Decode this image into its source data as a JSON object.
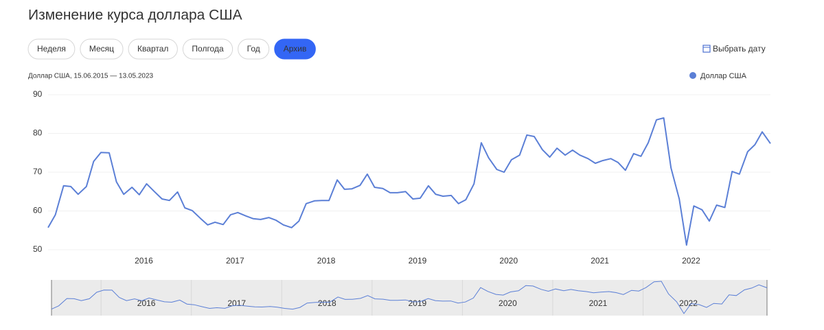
{
  "header": {
    "title": "Изменение курса доллара США"
  },
  "buttons": [
    "Неделя",
    "Месяц",
    "Квартал",
    "Полгода",
    "Год",
    "Архив"
  ],
  "active_button": 5,
  "date_picker": "Выбрать дату",
  "chart_data": {
    "type": "line",
    "subtitle": "Доллар США, 15.06.2015 — 13.05.2023",
    "x": [
      2014.95,
      2015.03,
      2015.12,
      2015.2,
      2015.28,
      2015.37,
      2015.45,
      2015.53,
      2015.62,
      2015.7,
      2015.78,
      2015.87,
      2015.95,
      2016.03,
      2016.12,
      2016.2,
      2016.28,
      2016.37,
      2016.45,
      2016.53,
      2016.62,
      2016.7,
      2016.78,
      2016.87,
      2016.95,
      2017.03,
      2017.12,
      2017.2,
      2017.28,
      2017.37,
      2017.45,
      2017.53,
      2017.62,
      2017.7,
      2017.78,
      2017.87,
      2017.95,
      2018.03,
      2018.12,
      2018.2,
      2018.28,
      2018.37,
      2018.45,
      2018.53,
      2018.62,
      2018.7,
      2018.78,
      2018.87,
      2018.95,
      2019.03,
      2019.12,
      2019.2,
      2019.28,
      2019.37,
      2019.45,
      2019.53,
      2019.62,
      2019.7,
      2019.78,
      2019.87,
      2019.95,
      2020.03,
      2020.12,
      2020.2,
      2020.28,
      2020.37,
      2020.45,
      2020.53,
      2020.62,
      2020.7,
      2020.78,
      2020.87,
      2020.95,
      2021.03,
      2021.12,
      2021.2,
      2021.28,
      2021.37,
      2021.45,
      2021.53,
      2021.62,
      2021.7,
      2021.78,
      2021.87,
      2021.95,
      2022.03,
      2022.12,
      2022.2,
      2022.28,
      2022.37,
      2022.45,
      2022.53,
      2022.62,
      2022.7,
      2022.78,
      2022.87
    ],
    "series": [
      {
        "name": "Доллар США",
        "color": "#5b7fd6",
        "values": [
          55.7,
          59,
          66.5,
          66.3,
          64.3,
          66.3,
          72.8,
          75.1,
          75,
          67.5,
          64.3,
          66.1,
          64.2,
          67,
          64.9,
          63.1,
          62.7,
          64.9,
          60.8,
          60.1,
          58.1,
          56.4,
          57.1,
          56.5,
          59,
          59.6,
          58.7,
          58,
          57.8,
          58.3,
          57.6,
          56.4,
          55.7,
          57.4,
          61.9,
          62.6,
          62.7,
          62.7,
          68,
          65.6,
          65.7,
          66.6,
          69.5,
          66.1,
          65.8,
          64.7,
          64.7,
          65,
          63.1,
          63.3,
          66.5,
          64.3,
          63.8,
          64,
          61.9,
          62.9,
          67,
          77.6,
          73.7,
          70.7,
          70,
          73.2,
          74.4,
          79.6,
          79.2,
          75.8,
          73.9,
          76.2,
          74.4,
          75.7,
          74.4,
          73.5,
          72.3,
          73,
          73.5,
          72.5,
          70.5,
          74.8,
          74.1,
          77.6,
          83.5,
          84,
          71.1,
          63.1,
          51.2,
          61.3,
          60.3,
          57.4,
          61.5,
          60.9,
          70.2,
          69.5,
          75.3,
          77.1,
          80.4,
          77.4
        ]
      }
    ],
    "xlim": [
      2014.95,
      2022.87
    ],
    "xticks": [
      2016,
      2017,
      2018,
      2019,
      2020,
      2021,
      2022
    ],
    "ylim": [
      50,
      90
    ],
    "yticks": [
      50,
      60,
      70,
      80,
      90
    ],
    "grid": true,
    "legend": "top-right"
  }
}
